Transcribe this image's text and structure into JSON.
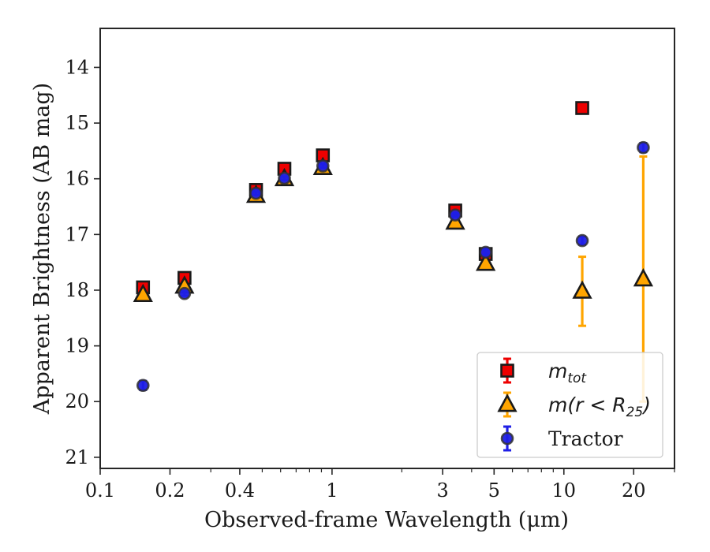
{
  "chart_data": {
    "type": "scatter",
    "title": "",
    "xlabel": "Observed-frame Wavelength (μm)",
    "ylabel": "Apparent Brightness (AB mag)",
    "xscale": "log",
    "xlim": [
      0.1,
      30
    ],
    "ylim": [
      21.2,
      13.3
    ],
    "y_inverted": true,
    "grid": false,
    "legend_position": "bottom-right",
    "x_ticks": [
      0.1,
      0.2,
      0.4,
      1,
      3,
      5,
      10,
      20
    ],
    "x_tick_labels": [
      "0.1",
      "0.2",
      "0.4",
      "1",
      "3",
      "5",
      "10",
      "20"
    ],
    "y_ticks": [
      14,
      15,
      16,
      17,
      18,
      19,
      20,
      21
    ],
    "y_tick_labels": [
      "14",
      "15",
      "16",
      "17",
      "18",
      "19",
      "20",
      "21"
    ],
    "series": [
      {
        "name": "m_tot",
        "legend_label": "m",
        "legend_sub": "tot",
        "marker": "square",
        "color": "#ee0000",
        "edge": "#1a1a1a",
        "x": [
          0.153,
          0.231,
          0.47,
          0.623,
          0.913,
          3.4,
          4.6,
          12.0,
          22.0
        ],
        "y": [
          17.95,
          17.78,
          16.2,
          15.82,
          15.58,
          16.57,
          17.35,
          14.73,
          null
        ],
        "yerr": [
          0.05,
          0.05,
          0.05,
          0.05,
          0.05,
          0.05,
          0.05,
          0.05,
          null
        ]
      },
      {
        "name": "m(r < R25)",
        "legend_label": "m(r < R",
        "legend_sub": "25",
        "legend_close": ")",
        "marker": "triangle",
        "color": "#ffa500",
        "edge": "#1a1a1a",
        "x": [
          0.153,
          0.231,
          0.47,
          0.623,
          0.913,
          3.4,
          4.6,
          12.0,
          22.0
        ],
        "y": [
          18.08,
          17.93,
          16.3,
          16.0,
          15.8,
          16.78,
          17.52,
          18.02,
          17.8
        ],
        "yerr": [
          0.03,
          0.03,
          0.03,
          0.03,
          0.03,
          0.03,
          0.03,
          0.62,
          2.2
        ]
      },
      {
        "name": "Tractor",
        "legend_label": "Tractor",
        "marker": "circle",
        "color": "#1f1fe6",
        "edge": "#333333",
        "x": [
          0.153,
          0.231,
          0.47,
          0.623,
          0.913,
          3.4,
          4.6,
          12.0,
          22.0
        ],
        "y": [
          19.71,
          18.06,
          16.26,
          15.99,
          15.77,
          16.65,
          17.32,
          17.11,
          15.44
        ],
        "yerr": [
          0.08,
          0.04,
          0.03,
          0.03,
          0.03,
          0.03,
          0.04,
          0.07,
          0.08
        ]
      }
    ]
  }
}
